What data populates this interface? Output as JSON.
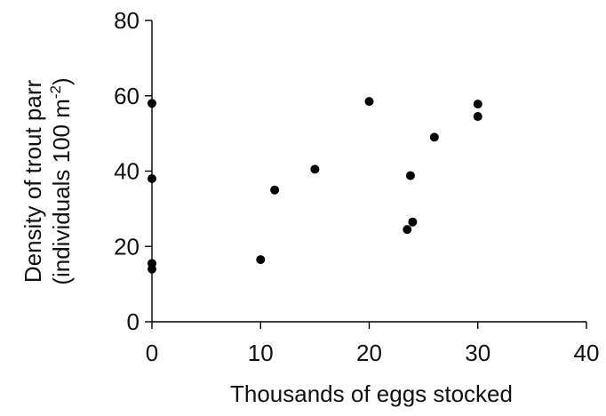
{
  "chart_data": {
    "type": "scatter",
    "title": "",
    "xlabel": "Thousands of eggs stocked",
    "ylabel_line1": "Density of trout parr",
    "ylabel_line2": "(individuals 100 m",
    "ylabel_sup": "-2",
    "ylabel_close": ")",
    "xlim": [
      0,
      40
    ],
    "ylim": [
      0,
      80
    ],
    "xticks": [
      0,
      10,
      20,
      30,
      40
    ],
    "yticks": [
      0,
      20,
      40,
      60,
      80
    ],
    "grid": false,
    "legend": "none",
    "marker_color": "#000000",
    "points": [
      {
        "x": 0,
        "y": 58
      },
      {
        "x": 0,
        "y": 38
      },
      {
        "x": 0,
        "y": 15.5
      },
      {
        "x": 0,
        "y": 14
      },
      {
        "x": 10,
        "y": 16.5
      },
      {
        "x": 11.3,
        "y": 35
      },
      {
        "x": 15,
        "y": 40.5
      },
      {
        "x": 20,
        "y": 58.5
      },
      {
        "x": 23.5,
        "y": 24.5
      },
      {
        "x": 23.8,
        "y": 38.8
      },
      {
        "x": 24,
        "y": 26.5
      },
      {
        "x": 26,
        "y": 49
      },
      {
        "x": 30,
        "y": 57.8
      },
      {
        "x": 30,
        "y": 54.5
      }
    ]
  }
}
